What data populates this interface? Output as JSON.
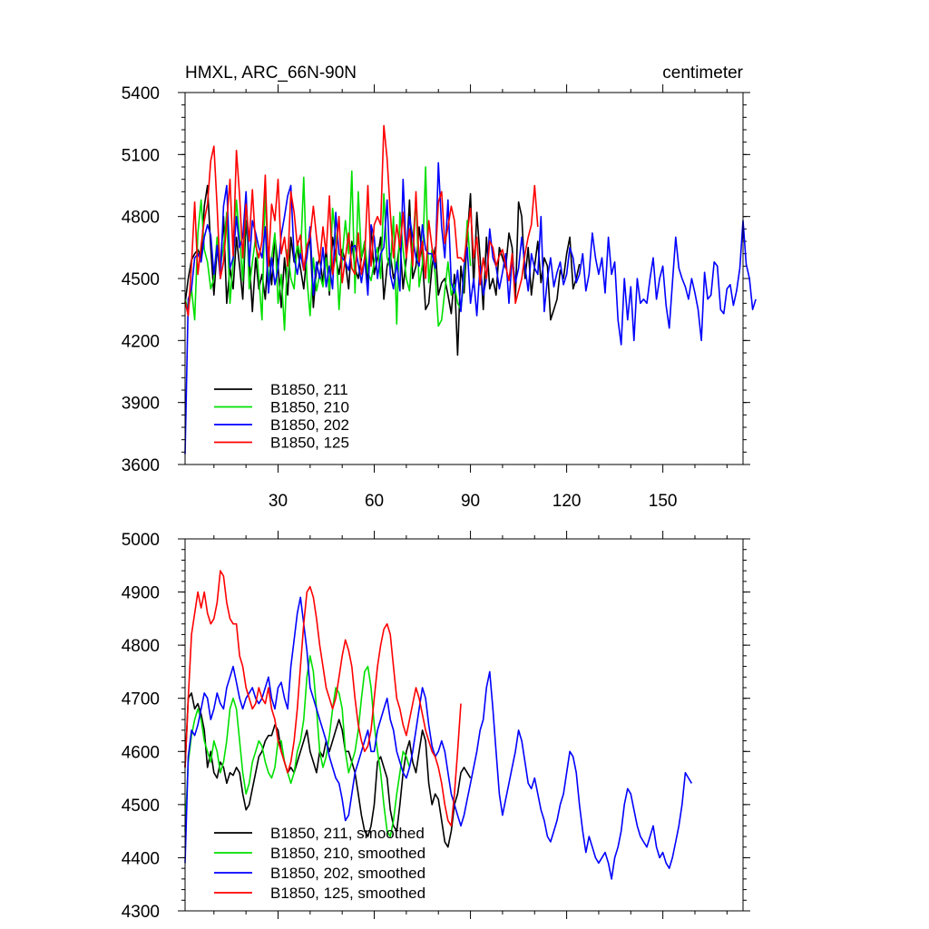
{
  "chart_data": [
    {
      "type": "line",
      "title": "HMXL, ARC_66N-90N",
      "units": "centimeter",
      "xlim": [
        1,
        175
      ],
      "ylim": [
        3600,
        5400
      ],
      "xticks": [
        30,
        60,
        90,
        120,
        150
      ],
      "yticks": [
        3600,
        3900,
        4200,
        4500,
        4800,
        5100,
        5400
      ],
      "legend_position": "bottom-left",
      "series": [
        {
          "name": "B1850, 211",
          "color": "#000000",
          "values": [
            4380,
            4500,
            4590,
            4620,
            4640,
            4600,
            4850,
            4950,
            4650,
            4420,
            4650,
            4550,
            4800,
            4380,
            4550,
            4450,
            4700,
            4560,
            4400,
            4780,
            4600,
            4340,
            4600,
            4450,
            4520,
            4400,
            4650,
            4470,
            4700,
            4560,
            4360,
            4600,
            4420,
            4700,
            4580,
            4650,
            4550,
            4450,
            4620,
            4700,
            4360,
            4550,
            4600,
            4480,
            4650,
            4420,
            4700,
            4600,
            4520,
            4640,
            4580,
            4450,
            4680,
            4550,
            4500,
            4600,
            4660,
            4480,
            4750,
            4520,
            4600,
            4700,
            4400,
            4560,
            4620,
            4500,
            4560,
            4680,
            4450,
            4600,
            4880,
            4500,
            4560,
            4750,
            4600,
            4350,
            4380,
            4560,
            4650,
            4420,
            4480,
            4500,
            4420,
            4330,
            4520,
            4130,
            4560,
            4430,
            4700,
            4910,
            4460,
            4820,
            4600,
            4350,
            4700,
            4450,
            4500,
            4420,
            4650,
            4600,
            4550,
            4720,
            4650,
            4400,
            4870,
            4800,
            4500,
            4650,
            4420,
            4560,
            4680,
            4480,
            4600,
            4560,
            4300,
            4350,
            4400,
            4540,
            4500,
            4620,
            4700,
            4450,
            4500,
            4570
          ]
        },
        {
          "name": "B1850, 210",
          "color": "#00e000",
          "values": [
            4400,
            4350,
            4450,
            4300,
            4720,
            4880,
            4640,
            4580,
            4450,
            4500,
            4700,
            4560,
            4650,
            4820,
            4380,
            4580,
            4880,
            4700,
            4490,
            4900,
            4450,
            4580,
            4700,
            4500,
            4300,
            4950,
            4480,
            4600,
            4720,
            4380,
            4520,
            4250,
            4640,
            4500,
            4450,
            4680,
            4600,
            4990,
            4500,
            4320,
            4600,
            4440,
            4520,
            4460,
            4600,
            4440,
            4840,
            4700,
            4350,
            4600,
            4780,
            4620,
            5020,
            4430,
            4920,
            4600,
            4680,
            4530,
            4490,
            4580,
            4650,
            4500,
            4910,
            4600,
            4550,
            4800,
            4280,
            4820,
            4640,
            4500,
            4440,
            4670,
            4880,
            4460,
            4570,
            5040,
            4480,
            4640,
            4520,
            4270,
            4300,
            4440,
            4580,
            4420,
            4470,
            4380,
            4350,
            4500,
            4780,
            4560
          ]
        },
        {
          "name": "B1850, 202",
          "color": "#0000ff",
          "values": [
            3650,
            4400,
            4450,
            4600,
            4620,
            4580,
            4700,
            4760,
            4710,
            4520,
            4660,
            4500,
            4850,
            4950,
            4550,
            4600,
            4800,
            4650,
            4700,
            4920,
            4560,
            4780,
            4720,
            4650,
            4600,
            4750,
            4430,
            4600,
            4470,
            4550,
            4710,
            4800,
            4900,
            4950,
            4600,
            4520,
            4620,
            4540,
            4600,
            4750,
            4420,
            4580,
            4500,
            4650,
            4460,
            4560,
            4450,
            4820,
            4620,
            4600,
            4580,
            4540,
            4650,
            4660,
            4570,
            4480,
            4600,
            4420,
            4760,
            4700,
            4500,
            4620,
            4650,
            4880,
            4520,
            4450,
            4580,
            4440,
            4980,
            4620,
            4800,
            4700,
            4600,
            4560,
            4760,
            4640,
            4620,
            4620,
            4550,
            5060,
            4750,
            4600,
            4880,
            4480,
            4430,
            4540,
            4340,
            4560,
            4650,
            4380,
            4500,
            4320,
            4560,
            4420,
            4500,
            4740,
            4600,
            4560,
            4450,
            4530,
            4620,
            4380,
            4600,
            4480,
            4550,
            4700,
            4560,
            4440,
            4620,
            4550,
            4520,
            4800,
            4340,
            4500,
            4600,
            4460,
            4530,
            4580,
            4470,
            4520,
            4650,
            4600,
            4480,
            4520,
            4620,
            4440,
            4520,
            4720,
            4600,
            4520,
            4600,
            4430,
            4700,
            4520,
            4580,
            4300,
            4180,
            4500,
            4300,
            4460,
            4200,
            4500,
            4380,
            4400,
            4380,
            4500,
            4600,
            4400,
            4500,
            4560,
            4370,
            4260,
            4480,
            4700,
            4550,
            4500,
            4460,
            4400,
            4500,
            4430,
            4350,
            4200,
            4530,
            4400,
            4420,
            4580,
            4560,
            4350,
            4330,
            4450,
            4470,
            4370,
            4440,
            4550,
            4780,
            4570,
            4500,
            4350,
            4400
          ]
        },
        {
          "name": "B1850, 125",
          "color": "#ff0000",
          "values": [
            4390,
            4320,
            4570,
            4870,
            4520,
            4660,
            4780,
            4860,
            5070,
            5140,
            4850,
            4500,
            4580,
            4770,
            4980,
            4610,
            5120,
            4900,
            4600,
            4860,
            4680,
            4930,
            4660,
            4600,
            4680,
            5000,
            4560,
            4860,
            4780,
            4980,
            4620,
            4700,
            4560,
            4920,
            4820,
            4660,
            4710,
            4540,
            4660,
            4700,
            4850,
            4700,
            4580,
            4750,
            4620,
            4900,
            4520,
            4620,
            4800,
            4480,
            4600,
            4720,
            4550,
            4520,
            4720,
            4520,
            4600,
            4950,
            4560,
            4760,
            4800,
            4760,
            5240,
            5080,
            4820,
            4600,
            4760,
            4650,
            4820,
            4600,
            4740,
            4560,
            4920,
            4580,
            4680,
            4500,
            4780,
            4650,
            4580,
            4870,
            4920,
            4670,
            4750,
            4850,
            4780,
            4600,
            4600,
            4580,
            4720,
            4840,
            4600,
            4700,
            4470,
            4600,
            4500,
            4680,
            4650,
            4560,
            4610,
            4640,
            4560,
            4490,
            4620,
            4380,
            4440,
            4500,
            4620,
            4700,
            4760,
            4950,
            4750
          ]
        }
      ]
    },
    {
      "type": "line",
      "title": "",
      "xlim": [
        1,
        175
      ],
      "ylim": [
        4300,
        5000
      ],
      "xticks": [
        30,
        60,
        90,
        120,
        150
      ],
      "yticks": [
        4300,
        4400,
        4500,
        4600,
        4700,
        4800,
        4900,
        5000
      ],
      "legend_position": "bottom-left",
      "series": [
        {
          "name": "B1850, 211, smoothed",
          "color": "#000000",
          "values": [
            4570,
            4700,
            4710,
            4680,
            4690,
            4670,
            4640,
            4570,
            4600,
            4560,
            4550,
            4580,
            4570,
            4540,
            4560,
            4555,
            4570,
            4560,
            4520,
            4490,
            4500,
            4530,
            4560,
            4590,
            4600,
            4620,
            4630,
            4630,
            4650,
            4640,
            4600,
            4580,
            4560,
            4570,
            4560,
            4580,
            4600,
            4620,
            4640,
            4600,
            4580,
            4560,
            4600,
            4590,
            4620,
            4600,
            4620,
            4640,
            4660,
            4640,
            4600,
            4600,
            4580,
            4560,
            4520,
            4480,
            4450,
            4440,
            4460,
            4500,
            4580,
            4590,
            4570,
            4550,
            4490,
            4460,
            4450,
            4500,
            4560,
            4600,
            4620,
            4580,
            4560,
            4600,
            4640,
            4620,
            4540,
            4500,
            4520,
            4510,
            4470,
            4430,
            4420,
            4450,
            4500,
            4520,
            4560,
            4570,
            4560,
            4550
          ]
        },
        {
          "name": "B1850, 210, smoothed",
          "color": "#00e000",
          "values": [
            4450,
            4580,
            4630,
            4660,
            4680,
            4660,
            4620,
            4600,
            4580,
            4620,
            4600,
            4560,
            4580,
            4620,
            4680,
            4700,
            4680,
            4620,
            4560,
            4520,
            4540,
            4580,
            4600,
            4620,
            4610,
            4580,
            4560,
            4550,
            4570,
            4620,
            4620,
            4580,
            4560,
            4540,
            4560,
            4600,
            4620,
            4660,
            4740,
            4780,
            4750,
            4680,
            4600,
            4570,
            4590,
            4630,
            4680,
            4720,
            4710,
            4680,
            4600,
            4560,
            4580,
            4600,
            4640,
            4700,
            4750,
            4760,
            4720,
            4650,
            4600,
            4560,
            4500,
            4450,
            4440,
            4470,
            4520,
            4560,
            4600,
            4590,
            4570
          ]
        },
        {
          "name": "B1850, 202, smoothed",
          "color": "#0000ff",
          "values": [
            4390,
            4590,
            4640,
            4630,
            4650,
            4680,
            4710,
            4700,
            4660,
            4680,
            4710,
            4690,
            4680,
            4720,
            4740,
            4760,
            4730,
            4700,
            4680,
            4700,
            4710,
            4720,
            4700,
            4690,
            4700,
            4720,
            4740,
            4700,
            4680,
            4720,
            4730,
            4700,
            4680,
            4760,
            4810,
            4860,
            4890,
            4840,
            4790,
            4720,
            4700,
            4680,
            4660,
            4640,
            4620,
            4590,
            4570,
            4550,
            4540,
            4510,
            4470,
            4480,
            4520,
            4560,
            4580,
            4600,
            4620,
            4640,
            4600,
            4600,
            4640,
            4660,
            4680,
            4700,
            4660,
            4640,
            4600,
            4580,
            4560,
            4550,
            4570,
            4600,
            4640,
            4680,
            4720,
            4700,
            4650,
            4610,
            4590,
            4600,
            4620,
            4600,
            4560,
            4520,
            4500,
            4480,
            4460,
            4480,
            4510,
            4540,
            4570,
            4600,
            4640,
            4660,
            4720,
            4750,
            4680,
            4600,
            4520,
            4480,
            4510,
            4540,
            4570,
            4600,
            4640,
            4620,
            4580,
            4540,
            4530,
            4550,
            4520,
            4490,
            4470,
            4440,
            4430,
            4450,
            4470,
            4500,
            4520,
            4560,
            4600,
            4590,
            4560,
            4500,
            4450,
            4410,
            4440,
            4420,
            4400,
            4390,
            4400,
            4410,
            4390,
            4360,
            4400,
            4420,
            4450,
            4500,
            4530,
            4520,
            4490,
            4460,
            4440,
            4430,
            4420,
            4440,
            4460,
            4420,
            4400,
            4410,
            4390,
            4380,
            4400,
            4430,
            4460,
            4500,
            4560,
            4550,
            4540
          ]
        }
      ]
    }
  ],
  "legend_lower_extra": {
    "name": "B1850, 125, smoothed",
    "color": "#ff0000",
    "values": [
      4570,
      4700,
      4820,
      4860,
      4900,
      4870,
      4900,
      4860,
      4840,
      4850,
      4880,
      4940,
      4930,
      4880,
      4850,
      4840,
      4840,
      4780,
      4760,
      4720,
      4700,
      4680,
      4690,
      4720,
      4700,
      4690,
      4720,
      4680,
      4660,
      4620,
      4600,
      4580,
      4560,
      4580,
      4620,
      4680,
      4760,
      4840,
      4900,
      4910,
      4890,
      4850,
      4800,
      4760,
      4720,
      4700,
      4680,
      4700,
      4740,
      4780,
      4810,
      4790,
      4760,
      4700,
      4650,
      4620,
      4600,
      4610,
      4640,
      4700,
      4760,
      4800,
      4830,
      4840,
      4820,
      4760,
      4700,
      4680,
      4650,
      4630,
      4660,
      4690,
      4720,
      4700,
      4670,
      4640,
      4620,
      4600,
      4590,
      4570,
      4540,
      4500,
      4470,
      4460,
      4520,
      4600,
      4690
    ]
  }
}
